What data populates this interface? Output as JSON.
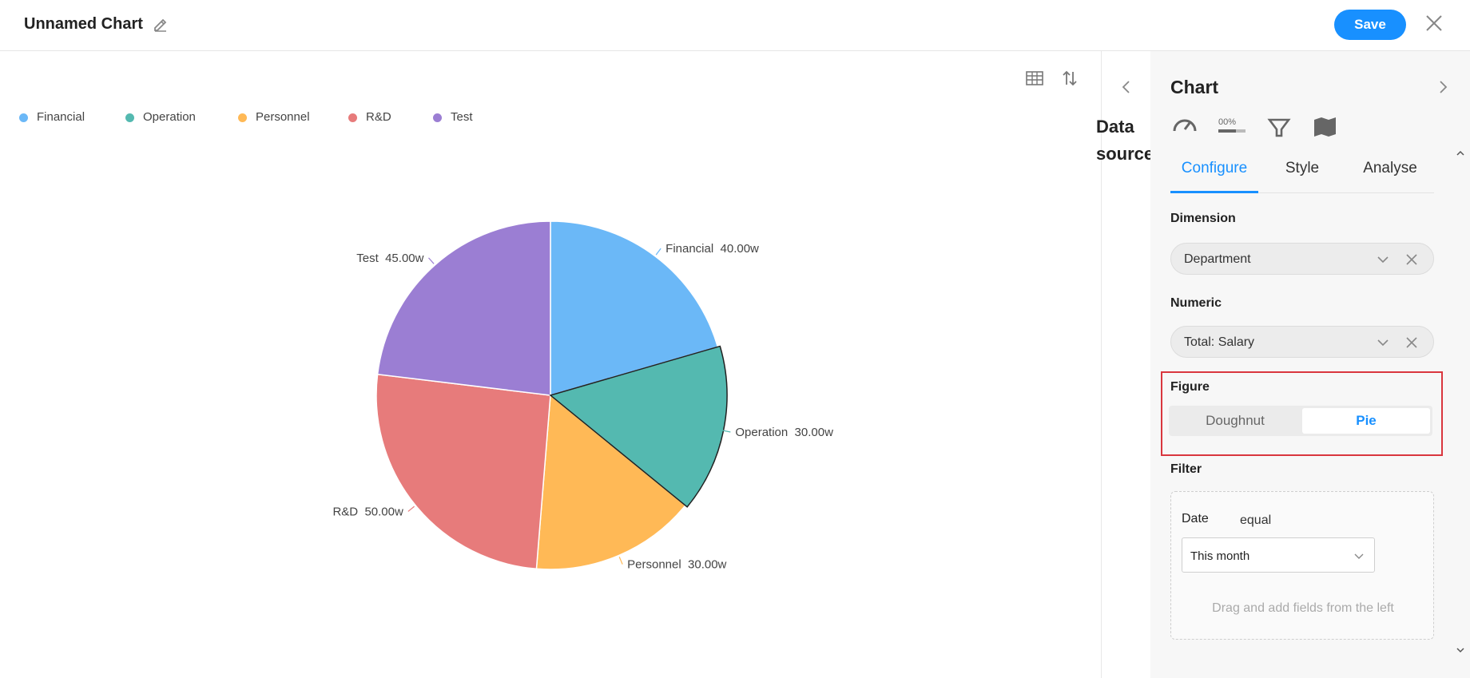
{
  "header": {
    "title": "Unnamed Chart",
    "save_label": "Save"
  },
  "icons": {
    "edit": "pencil-icon",
    "close": "close-icon",
    "table": "table-icon",
    "sort": "sort-icon"
  },
  "colors": {
    "accent": "#1890ff",
    "highlight_border": "#d9363e"
  },
  "legend": [
    {
      "label": "Financial",
      "color": "#6bb8f7"
    },
    {
      "label": "Operation",
      "color": "#54b9b0"
    },
    {
      "label": "Personnel",
      "color": "#ffb956"
    },
    {
      "label": "R&D",
      "color": "#e77b7b"
    },
    {
      "label": "Test",
      "color": "#9b7ed3"
    }
  ],
  "chart_data": {
    "type": "pie",
    "categories": [
      "Financial",
      "Operation",
      "Personnel",
      "R&D",
      "Test"
    ],
    "values": [
      40,
      30,
      30,
      50,
      45
    ],
    "value_unit": "w",
    "data_labels": [
      "Financial  40.00w",
      "Operation  30.00w",
      "Personnel  30.00w",
      "R&D  50.00w",
      "Test  45.00w"
    ],
    "colors": [
      "#6bb8f7",
      "#54b9b0",
      "#ffb956",
      "#e77b7b",
      "#9b7ed3"
    ],
    "highlighted": "Operation",
    "start_angle": "12 o'clock",
    "direction": "clockwise",
    "legend_position": "top-left"
  },
  "datasource": {
    "label": "Data source"
  },
  "panel": {
    "title": "Chart",
    "chart_type_icons": [
      "gauge-icon",
      "percentage-bar-icon",
      "funnel-icon",
      "map-icon"
    ],
    "tabs": [
      {
        "label": "Configure",
        "active": true
      },
      {
        "label": "Style",
        "active": false
      },
      {
        "label": "Analyse",
        "active": false
      }
    ],
    "dimension": {
      "label": "Dimension",
      "value": "Department"
    },
    "numeric": {
      "label": "Numeric",
      "value": "Total: Salary"
    },
    "figure": {
      "label": "Figure",
      "options": [
        {
          "label": "Doughnut",
          "selected": false
        },
        {
          "label": "Pie",
          "selected": true
        }
      ]
    },
    "filter": {
      "label": "Filter",
      "field": "Date",
      "operator": "equal",
      "value": "This month",
      "hint": "Drag and add fields from the left"
    }
  }
}
